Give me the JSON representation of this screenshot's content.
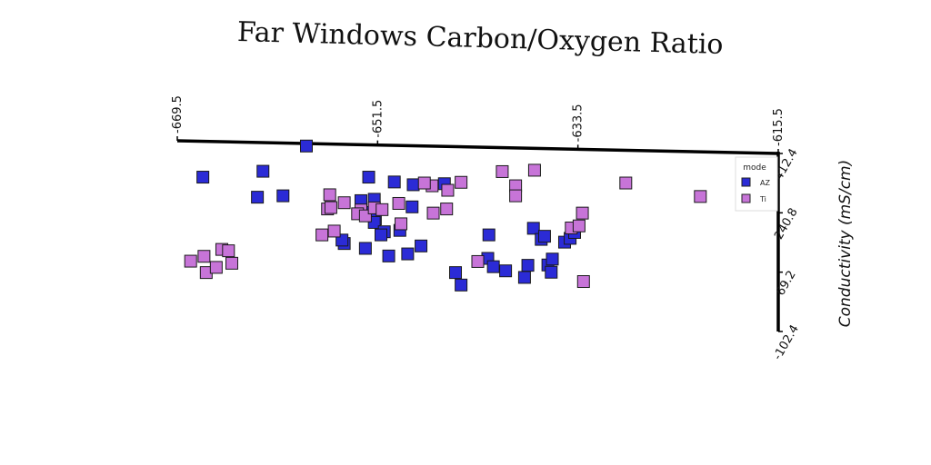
{
  "chart_data": {
    "type": "scatter",
    "title": "Far Windows Carbon/Oxygen Ratio",
    "xlabel": "",
    "ylabel": "Conductivity (mS/cm)",
    "xlim": [
      -669.5,
      -615.5
    ],
    "ylim": [
      -102.4,
      412.4
    ],
    "x_ticks": [
      "-669.5",
      "-651.5",
      "-633.5",
      "-615.5"
    ],
    "x_tick_values": [
      -669.5,
      -651.5,
      -633.5,
      -615.5
    ],
    "y_ticks": [
      "412.4",
      "240.8",
      "69.2",
      "-102.4"
    ],
    "y_tick_values": [
      412.4,
      240.8,
      69.2,
      -102.4
    ],
    "x_axis_position": "top",
    "y_axis_position": "right",
    "grid": false,
    "legend": {
      "title": "mode",
      "position": "top-right"
    },
    "series": [
      {
        "name": "AZ",
        "color": "#2b2bd6",
        "points": [
          [
            -667.2,
            344
          ],
          [
            -661.8,
            361
          ],
          [
            -657.9,
            434
          ],
          [
            -662.3,
            286
          ],
          [
            -660.0,
            290
          ],
          [
            -652.3,
            344
          ],
          [
            -650.0,
            330
          ],
          [
            -653.0,
            276
          ],
          [
            -651.8,
            280
          ],
          [
            -652.4,
            242
          ],
          [
            -651.7,
            223
          ],
          [
            -651.8,
            213
          ],
          [
            -650.9,
            186
          ],
          [
            -651.2,
            177
          ],
          [
            -649.5,
            190
          ],
          [
            -648.3,
            322
          ],
          [
            -648.4,
            258
          ],
          [
            -645.5,
            325
          ],
          [
            -654.5,
            152
          ],
          [
            -654.7,
            162
          ],
          [
            -652.6,
            138
          ],
          [
            -650.5,
            116
          ],
          [
            -648.8,
            122
          ],
          [
            -647.6,
            145
          ],
          [
            -644.5,
            68
          ],
          [
            -644.0,
            32
          ],
          [
            -641.5,
            177
          ],
          [
            -641.6,
            109
          ],
          [
            -641.1,
            85
          ],
          [
            -640.0,
            73
          ],
          [
            -638.0,
            89
          ],
          [
            -637.5,
            196
          ],
          [
            -636.8,
            164
          ],
          [
            -636.5,
            173
          ],
          [
            -636.2,
            90
          ],
          [
            -638.3,
            54
          ],
          [
            -635.8,
            107
          ],
          [
            -635.9,
            69
          ],
          [
            -634.7,
            156
          ],
          [
            -634.2,
            167
          ],
          [
            -633.8,
            184
          ]
        ]
      },
      {
        "name": "Ti",
        "color": "#c774d8",
        "points": [
          [
            -668.3,
            101
          ],
          [
            -667.1,
            115
          ],
          [
            -666.9,
            68
          ],
          [
            -666.0,
            83
          ],
          [
            -665.5,
            135
          ],
          [
            -664.9,
            131
          ],
          [
            -664.6,
            95
          ],
          [
            -656.5,
            177
          ],
          [
            -656.0,
            252
          ],
          [
            -655.8,
            293
          ],
          [
            -655.7,
            256
          ],
          [
            -655.4,
            188
          ],
          [
            -654.5,
            270
          ],
          [
            -653.0,
            249
          ],
          [
            -653.3,
            238
          ],
          [
            -652.6,
            232
          ],
          [
            -651.8,
            255
          ],
          [
            -651.1,
            250
          ],
          [
            -649.4,
            209
          ],
          [
            -649.6,
            268
          ],
          [
            -646.6,
            319
          ],
          [
            -647.3,
            327
          ],
          [
            -646.5,
            240
          ],
          [
            -645.2,
            306
          ],
          [
            -645.3,
            252
          ],
          [
            -644.0,
            329
          ],
          [
            -642.5,
            100
          ],
          [
            -640.3,
            360
          ],
          [
            -639.1,
            319
          ],
          [
            -639.1,
            290
          ],
          [
            -637.4,
            364
          ],
          [
            -634.1,
            197
          ],
          [
            -633.1,
            240
          ],
          [
            -633.4,
            203
          ],
          [
            -633.0,
            42
          ],
          [
            -629.2,
            327
          ],
          [
            -622.5,
            288
          ]
        ]
      }
    ]
  }
}
